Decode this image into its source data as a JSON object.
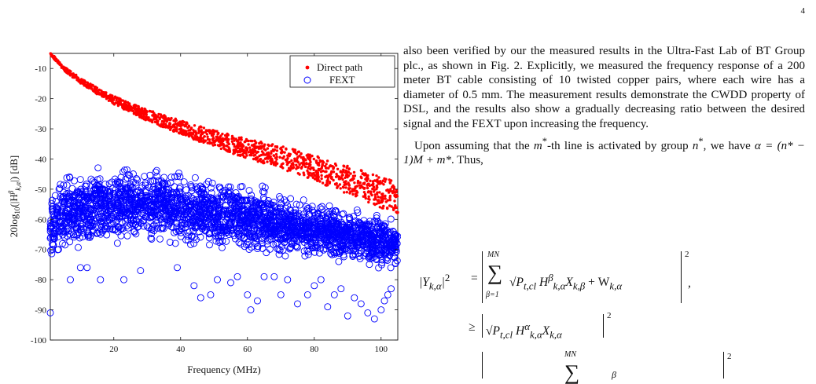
{
  "page": {
    "number": "4"
  },
  "figure": {
    "chart_data": {
      "type": "scatter",
      "xlabel": "Frequency (MHz)",
      "ylabel": "20log10(|H^β_k,α|) [dB]",
      "xlim": [
        1,
        105
      ],
      "ylim": [
        -100,
        -5
      ],
      "xticks": [
        20,
        40,
        60,
        80,
        100
      ],
      "yticks": [
        -10,
        -20,
        -30,
        -40,
        -50,
        -60,
        -70,
        -80,
        -90,
        -100
      ],
      "grid": false,
      "legend_position": "top-right",
      "series": [
        {
          "name": "Direct path",
          "marker": "filled-dot",
          "color": "#ff0000",
          "x": [
            1,
            5,
            10,
            15,
            20,
            25,
            30,
            35,
            40,
            45,
            50,
            55,
            60,
            65,
            70,
            75,
            80,
            85,
            90,
            95,
            100,
            105
          ],
          "y": [
            -5,
            -10,
            -14,
            -17.5,
            -20.5,
            -23,
            -25.5,
            -27.5,
            -29.5,
            -31.5,
            -33,
            -35,
            -36.5,
            -38,
            -39.5,
            -41,
            -43,
            -45,
            -47,
            -49,
            -51,
            -53
          ]
        },
        {
          "name": "FEXT",
          "marker": "open-circle",
          "color": "#0000ff",
          "x": [
            1,
            5,
            10,
            15,
            20,
            25,
            30,
            35,
            40,
            45,
            50,
            55,
            60,
            65,
            70,
            75,
            80,
            85,
            90,
            95,
            100,
            105
          ],
          "y_upper": [
            -50,
            -44,
            -42,
            -41,
            -40.5,
            -41,
            -41.5,
            -42,
            -43,
            -44,
            -45,
            -46,
            -47,
            -48,
            -50,
            -51,
            -52,
            -53.5,
            -55,
            -56,
            -57,
            -58
          ],
          "y_lower": [
            -75,
            -73,
            -71,
            -70,
            -70,
            -70,
            -70,
            -70,
            -70.5,
            -71,
            -71.5,
            -72,
            -72.5,
            -73,
            -74,
            -74.5,
            -75,
            -75.5,
            -76,
            -76.5,
            -77,
            -77
          ],
          "outliers": [
            [
              1,
              -91
            ],
            [
              7,
              -80
            ],
            [
              10,
              -76
            ],
            [
              12,
              -76
            ],
            [
              16,
              -80
            ],
            [
              23,
              -80
            ],
            [
              28,
              -77
            ],
            [
              39,
              -76
            ],
            [
              44,
              -82
            ],
            [
              46,
              -86
            ],
            [
              49,
              -85
            ],
            [
              51,
              -80
            ],
            [
              55,
              -81
            ],
            [
              57,
              -79
            ],
            [
              60,
              -85
            ],
            [
              61,
              -90
            ],
            [
              63,
              -87
            ],
            [
              65,
              -79
            ],
            [
              68,
              -79
            ],
            [
              70,
              -85
            ],
            [
              72,
              -80
            ],
            [
              75,
              -88
            ],
            [
              78,
              -85
            ],
            [
              80,
              -82
            ],
            [
              82,
              -80
            ],
            [
              84,
              -89
            ],
            [
              86,
              -85
            ],
            [
              88,
              -83
            ],
            [
              90,
              -92
            ],
            [
              92,
              -86
            ],
            [
              94,
              -88
            ],
            [
              96,
              -91
            ],
            [
              98,
              -93
            ],
            [
              100,
              -90
            ],
            [
              101,
              -87
            ],
            [
              102,
              -85
            ],
            [
              103,
              -83
            ]
          ]
        }
      ]
    },
    "legend": {
      "direct": "Direct path",
      "fext": "FEXT"
    },
    "axis": {
      "xlabel": "Frequency (MHz)",
      "ylabel_prefix": "20log",
      "ylabel_sub": "10",
      "ylabel_mid": "(|H",
      "ylabel_sup": "β",
      "ylabel_var_sub": "k,α",
      "ylabel_suffix": "|) [dB]",
      "xticks": [
        "20",
        "40",
        "60",
        "80",
        "100"
      ],
      "yticks": [
        "-10",
        "-20",
        "-30",
        "-40",
        "-50",
        "-60",
        "-70",
        "-80",
        "-90",
        "-100"
      ]
    }
  },
  "text": {
    "p1": "also been verified by our the measured results in the Ultra-Fast Lab of BT Group plc., as shown in Fig. 2. Explicitly, we measured the frequency response of a 200 meter BT cable consisting of 10 twisted copper pairs, where each wire has a diameter of 0.5 mm. The measurement results demonstrate the CWDD property of DSL, and the results also show a gradually decreasing ratio between the desired signal and the FEXT upon increasing the frequency.",
    "p2_a": "Upon assuming that the ",
    "p2_m": "m",
    "p2_star1": "*",
    "p2_b": "-th line is activated by group ",
    "p2_n": "n",
    "p2_star2": "*",
    "p2_c": ", we have ",
    "p2_eq": "α = (n* − 1)M + m*",
    "p2_d": ". Thus,"
  },
  "equations": {
    "lhs": "|Y",
    "lhs_sub": "k,α",
    "lhs_end": "|",
    "lhs_sq": "2",
    "eq": "=",
    "sum_upper": "MN",
    "sum_lower": "β=1",
    "term1": "√P",
    "term1_sub": "t,cl",
    "term1_h": "H",
    "term1_hsup": "β",
    "term1_hsub": "k,α",
    "term1_x": "X",
    "term1_xsub": "k,β",
    "term1_plus": "+ W",
    "term1_wsub": "k,α",
    "comma": ",",
    "geq": "≥",
    "term2_sqrt": "√P",
    "term2_sub": "t,cl",
    "term2_h": "H",
    "term2_hsup": "α",
    "term2_hsub": "k,α",
    "term2_x": "X",
    "term2_xsub": "k,α",
    "sq2": "2",
    "sq3": "2",
    "sum3_upper": "MN",
    "beta3": "β"
  }
}
